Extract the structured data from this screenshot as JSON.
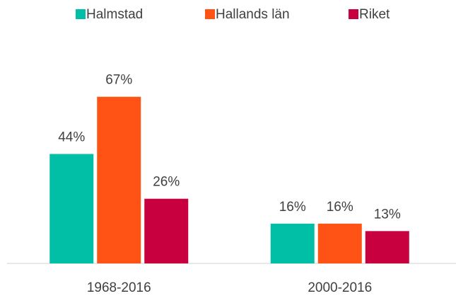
{
  "chart_data": {
    "type": "bar",
    "categories": [
      "1968-2016",
      "2000-2016"
    ],
    "series": [
      {
        "name": "Halmstad",
        "color": "#00bfa6",
        "values": [
          44,
          16
        ],
        "value_labels": [
          "44%",
          "16%"
        ]
      },
      {
        "name": "Hallands län",
        "color": "#ff5316",
        "values": [
          67,
          16
        ],
        "value_labels": [
          "67%",
          "16%"
        ]
      },
      {
        "name": "Riket",
        "color": "#c8003f",
        "values": [
          26,
          13
        ],
        "value_labels": [
          "26%",
          "13%"
        ]
      }
    ],
    "ylim": [
      0,
      80
    ],
    "legend": "top"
  }
}
